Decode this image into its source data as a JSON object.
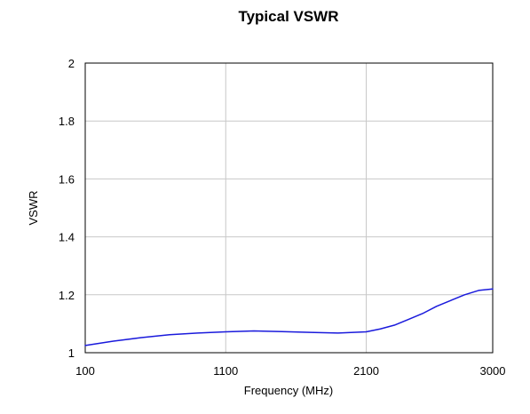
{
  "chart_data": {
    "type": "line",
    "title": "Typical VSWR",
    "xlabel": "Frequency (MHz)",
    "ylabel": "VSWR",
    "xlim": [
      100,
      3000
    ],
    "ylim": [
      1,
      2
    ],
    "x_ticks": [
      100,
      1100,
      2100,
      3000
    ],
    "x_tick_labels": [
      "100",
      "1100",
      "2100",
      "3000"
    ],
    "y_ticks": [
      1,
      1.2,
      1.4,
      1.6,
      1.8,
      2
    ],
    "y_tick_labels": [
      "1",
      "1.2",
      "1.4",
      "1.6",
      "1.8",
      "2"
    ],
    "grid": true,
    "legend": "none",
    "colors": {
      "series": "#1a1adc",
      "grid": "#c8c8c8",
      "axis": "#000000",
      "text": "#000000"
    },
    "series": [
      {
        "x": [
          100,
          300,
          500,
          700,
          900,
          1100,
          1300,
          1500,
          1700,
          1900,
          2100,
          2200,
          2300,
          2400,
          2500,
          2600,
          2700,
          2800,
          2900,
          3000
        ],
        "y": [
          1.025,
          1.04,
          1.052,
          1.062,
          1.068,
          1.072,
          1.075,
          1.073,
          1.07,
          1.068,
          1.072,
          1.082,
          1.095,
          1.115,
          1.135,
          1.16,
          1.18,
          1.2,
          1.215,
          1.22
        ]
      }
    ]
  }
}
